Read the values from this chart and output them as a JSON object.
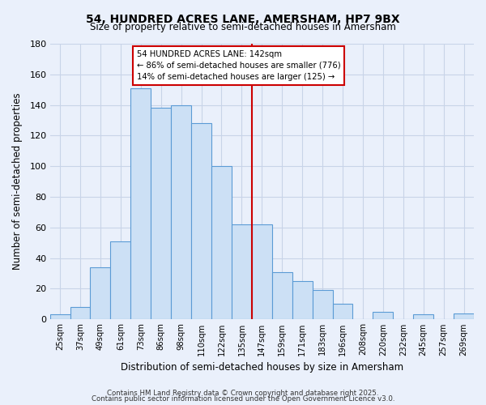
{
  "title": "54, HUNDRED ACRES LANE, AMERSHAM, HP7 9BX",
  "subtitle": "Size of property relative to semi-detached houses in Amersham",
  "xlabel": "Distribution of semi-detached houses by size in Amersham",
  "ylabel": "Number of semi-detached properties",
  "bin_labels": [
    "25sqm",
    "37sqm",
    "49sqm",
    "61sqm",
    "73sqm",
    "86sqm",
    "98sqm",
    "110sqm",
    "122sqm",
    "135sqm",
    "147sqm",
    "159sqm",
    "171sqm",
    "183sqm",
    "196sqm",
    "208sqm",
    "220sqm",
    "232sqm",
    "245sqm",
    "257sqm",
    "269sqm"
  ],
  "bar_values": [
    3,
    8,
    34,
    51,
    151,
    138,
    140,
    128,
    100,
    62,
    62,
    31,
    25,
    19,
    10,
    0,
    5,
    0,
    3,
    0,
    4
  ],
  "bar_color": "#cce0f5",
  "bar_edge_color": "#5b9bd5",
  "vline_x_index": 10,
  "property_value": "142sqm",
  "pct_smaller": 86,
  "n_smaller": 776,
  "pct_larger": 14,
  "n_larger": 125,
  "annotation_box_color": "#ffffff",
  "annotation_box_edge": "#cc0000",
  "vline_color": "#cc0000",
  "ylim": [
    0,
    180
  ],
  "yticks": [
    0,
    20,
    40,
    60,
    80,
    100,
    120,
    140,
    160,
    180
  ],
  "footer1": "Contains HM Land Registry data © Crown copyright and database right 2025.",
  "footer2": "Contains public sector information licensed under the Open Government Licence v3.0.",
  "background_color": "#eaf0fb",
  "grid_color": "#c8d4e8"
}
